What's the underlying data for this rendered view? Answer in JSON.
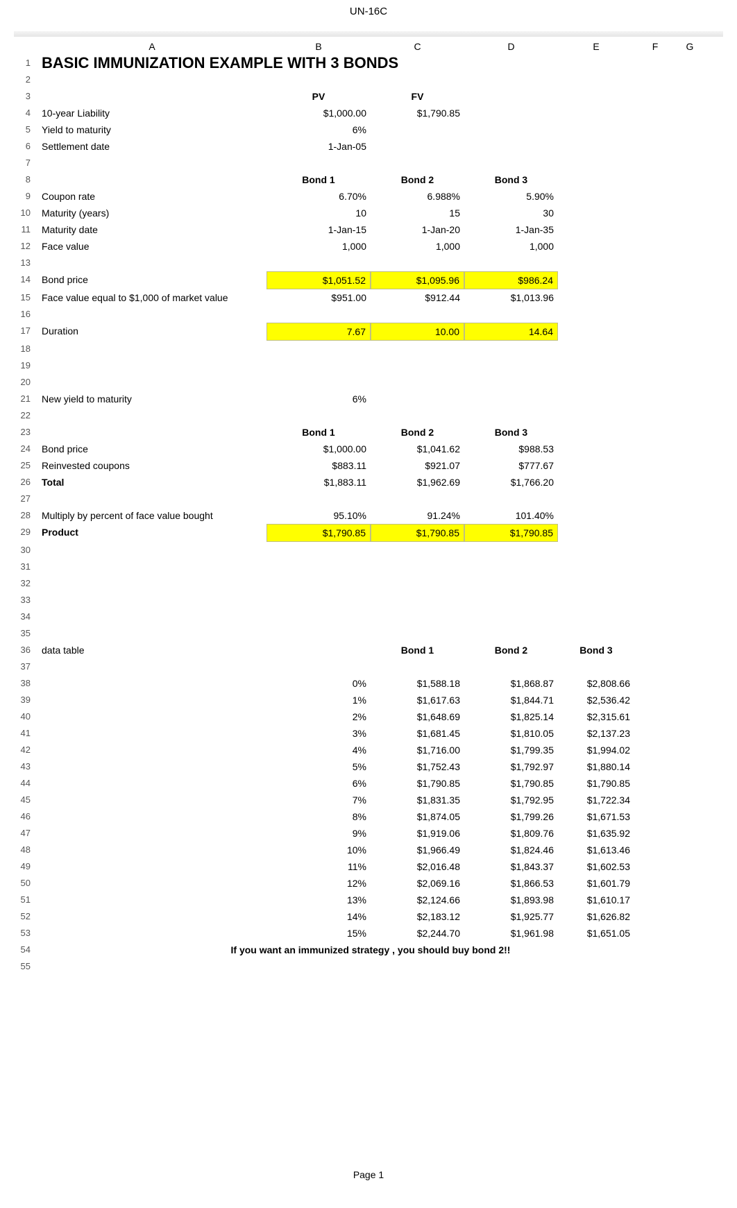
{
  "doc": {
    "header": "UN-16C",
    "page_footer": "Page 1"
  },
  "columns": {
    "a": "A",
    "b": "B",
    "c": "C",
    "d": "D",
    "e": "E",
    "f": "F",
    "g": "G"
  },
  "title": "BASIC IMMUNIZATION EXAMPLE WITH 3 BONDS",
  "labels": {
    "pv": "PV",
    "fv": "FV",
    "liability": "10-year Liability",
    "ytm": "Yield to maturity",
    "settle": "Settlement date",
    "bond1": "Bond 1",
    "bond2": "Bond 2",
    "bond3": "Bond 3",
    "coupon": "Coupon rate",
    "mat_years": "Maturity (years)",
    "mat_date": "Maturity date",
    "face_value": "Face value",
    "bond_price": "Bond price",
    "fv_1000": "Face value equal to $1,000 of market value",
    "duration": "Duration",
    "new_ytm": "New yield to maturity",
    "reinvested": "Reinvested coupons",
    "total": "Total",
    "multiply": "Multiply by percent of face value bought",
    "product": "Product",
    "data_table": "data table"
  },
  "assumptions": {
    "liability_pv": "$1,000.00",
    "liability_fv": "$1,790.85",
    "ytm": "6%",
    "settle_date": "1-Jan-05"
  },
  "bonds": {
    "coupon": {
      "b1": "6.70%",
      "b2": "6.988%",
      "b3": "5.90%"
    },
    "mat_years": {
      "b1": "10",
      "b2": "15",
      "b3": "30"
    },
    "mat_date": {
      "b1": "1-Jan-15",
      "b2": "1-Jan-20",
      "b3": "1-Jan-35"
    },
    "face_value": {
      "b1": "1,000",
      "b2": "1,000",
      "b3": "1,000"
    },
    "price": {
      "b1": "$1,051.52",
      "b2": "$1,095.96",
      "b3": "$986.24"
    },
    "fv_1000": {
      "b1": "$951.00",
      "b2": "$912.44",
      "b3": "$1,013.96"
    },
    "duration": {
      "b1": "7.67",
      "b2": "10.00",
      "b3": "14.64"
    }
  },
  "new_ytm": "6%",
  "block2": {
    "bond_price": {
      "b1": "$1,000.00",
      "b2": "$1,041.62",
      "b3": "$988.53"
    },
    "reinvested": {
      "b1": "$883.11",
      "b2": "$921.07",
      "b3": "$777.67"
    },
    "total": {
      "b1": "$1,883.11",
      "b2": "$1,962.69",
      "b3": "$1,766.20"
    },
    "multiply": {
      "b1": "95.10%",
      "b2": "91.24%",
      "b3": "101.40%"
    },
    "product": {
      "b1": "$1,790.85",
      "b2": "$1,790.85",
      "b3": "$1,790.85"
    }
  },
  "data_table": {
    "headers": {
      "c": "Bond 1",
      "d": "Bond 2",
      "e": "Bond 3"
    },
    "rows": [
      {
        "pct": "0%",
        "b1": "$1,588.18",
        "b2": "$1,868.87",
        "b3": "$2,808.66"
      },
      {
        "pct": "1%",
        "b1": "$1,617.63",
        "b2": "$1,844.71",
        "b3": "$2,536.42"
      },
      {
        "pct": "2%",
        "b1": "$1,648.69",
        "b2": "$1,825.14",
        "b3": "$2,315.61"
      },
      {
        "pct": "3%",
        "b1": "$1,681.45",
        "b2": "$1,810.05",
        "b3": "$2,137.23"
      },
      {
        "pct": "4%",
        "b1": "$1,716.00",
        "b2": "$1,799.35",
        "b3": "$1,994.02"
      },
      {
        "pct": "5%",
        "b1": "$1,752.43",
        "b2": "$1,792.97",
        "b3": "$1,880.14"
      },
      {
        "pct": "6%",
        "b1": "$1,790.85",
        "b2": "$1,790.85",
        "b3": "$1,790.85"
      },
      {
        "pct": "7%",
        "b1": "$1,831.35",
        "b2": "$1,792.95",
        "b3": "$1,722.34"
      },
      {
        "pct": "8%",
        "b1": "$1,874.05",
        "b2": "$1,799.26",
        "b3": "$1,671.53"
      },
      {
        "pct": "9%",
        "b1": "$1,919.06",
        "b2": "$1,809.76",
        "b3": "$1,635.92"
      },
      {
        "pct": "10%",
        "b1": "$1,966.49",
        "b2": "$1,824.46",
        "b3": "$1,613.46"
      },
      {
        "pct": "11%",
        "b1": "$2,016.48",
        "b2": "$1,843.37",
        "b3": "$1,602.53"
      },
      {
        "pct": "12%",
        "b1": "$2,069.16",
        "b2": "$1,866.53",
        "b3": "$1,601.79"
      },
      {
        "pct": "13%",
        "b1": "$2,124.66",
        "b2": "$1,893.98",
        "b3": "$1,610.17"
      },
      {
        "pct": "14%",
        "b1": "$2,183.12",
        "b2": "$1,925.77",
        "b3": "$1,626.82"
      },
      {
        "pct": "15%",
        "b1": "$2,244.70",
        "b2": "$1,961.98",
        "b3": "$1,651.05"
      }
    ]
  },
  "footer_note": "If you want an immunized strategy , you should buy bond 2!!",
  "colors": {
    "highlight": "#ffff00",
    "text": "#000000",
    "rownum": "#555555",
    "background": "#ffffff"
  },
  "row_numbers": {
    "start": 1,
    "end": 55
  }
}
